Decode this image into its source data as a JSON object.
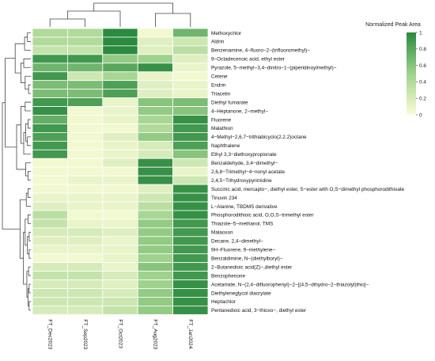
{
  "chart_data": {
    "type": "heatmap",
    "title": "",
    "legend_title": "Normalized Peak Area",
    "colorbar_ticks": [
      "0",
      "0.2",
      "0.4",
      "0.6",
      "0.8",
      "1"
    ],
    "colorbar_range": [
      0,
      1
    ],
    "colors": {
      "low": "#fbfcd8",
      "mid": "#9fd28c",
      "high": "#2a8a3e",
      "grid": "#ffffff",
      "line": "#444444"
    },
    "legend_position": "top-right",
    "columns": [
      "FT_Dec2023",
      "FT_Sep2023",
      "FT_Oct2023",
      "FT_Aug2023",
      "FT_Jan2024"
    ],
    "rows": [
      "Methoxychlor",
      "Aldrin",
      "Benzenamine, 4−fluoro−2−(trifluoromethyl)−",
      "9−Octadecenoic acid, ethyl ester",
      "Pyrazole, 5−methyl−3,4−dinitro−1−(piperidinoylmethyl)−",
      "Cetene",
      "Endrin",
      "Triacetin",
      "Diethyl fumarate",
      "4−Heptanone, 2−methyl−",
      "Fluorene",
      "Malathion",
      "4−Methyl−2,6,7−trithiabicyclo(2.2.2)octane",
      "Naphthalene",
      "Ethyl 3,3−diethoxypropionate",
      "Benzaldehyde, 3,4−dimethyl−",
      "2,6,8−Trimethyl−4−nonyl acetate",
      "2,4,5−Trihydroxypyrimidine",
      "Succinic acid, mercapto−, diethyl ester, S−ester with O,S−dimethyl phosphorodithioate",
      "Tinuvin 234",
      "L−Alanine, TBDMS derivative",
      "Phosphorodithioic acid, O,O,S−trimethyl ester",
      "Thiazole−5−methanol, TMS",
      "Malaoxon",
      "Decane, 2,4−dimethyl−",
      "9H−Fluorene, 9−methylene−",
      "Benzaldimine, N−(diethylboryl)−",
      "2−Butanedioic acid(Z)−,diethyl ester",
      "Benzophenone",
      "Acetamide, N−(2,4−difluorophenyl)−2−[(4,5−dihydro−2−thiazolyl)thio]−",
      "Diethyleneglycol diacrylate",
      "Heptachlor",
      "Pentanedioic acid, 3−thioxo−, diethyl ester"
    ],
    "values": [
      [
        0.4,
        0.4,
        1.0,
        0.05,
        0.7
      ],
      [
        0.4,
        0.4,
        1.0,
        0.15,
        0.25
      ],
      [
        0.3,
        0.3,
        1.0,
        0.15,
        0.35
      ],
      [
        0.9,
        0.9,
        0.55,
        0.5,
        0.15
      ],
      [
        0.7,
        0.7,
        0.8,
        0.95,
        0.1
      ],
      [
        0.9,
        0.25,
        0.45,
        0.1,
        0.05
      ],
      [
        0.65,
        0.65,
        0.85,
        0.15,
        0.1
      ],
      [
        0.65,
        0.65,
        0.85,
        0.15,
        0.1
      ],
      [
        0.9,
        0.85,
        0.1,
        0.6,
        0.65
      ],
      [
        0.95,
        0.05,
        0.1,
        0.55,
        0.6
      ],
      [
        0.75,
        0.05,
        0.1,
        0.45,
        0.95
      ],
      [
        0.9,
        0.05,
        0.05,
        0.4,
        0.9
      ],
      [
        0.85,
        0.05,
        0.15,
        0.55,
        0.9
      ],
      [
        0.9,
        0.05,
        0.1,
        0.2,
        0.85
      ],
      [
        0.9,
        0.05,
        0.1,
        0.2,
        0.6
      ],
      [
        0.05,
        0.05,
        0.15,
        0.95,
        0.25
      ],
      [
        0.05,
        0.05,
        0.05,
        0.95,
        0.1
      ],
      [
        0.05,
        0.1,
        0.1,
        0.95,
        0.25
      ],
      [
        0.05,
        0.05,
        0.05,
        0.15,
        0.95
      ],
      [
        0.1,
        0.1,
        0.1,
        0.25,
        0.95
      ],
      [
        0.15,
        0.1,
        0.1,
        0.35,
        0.95
      ],
      [
        0.35,
        0.05,
        0.05,
        0.45,
        0.95
      ],
      [
        0.3,
        0.1,
        0.1,
        0.55,
        0.9
      ],
      [
        0.2,
        0.2,
        0.15,
        0.55,
        0.9
      ],
      [
        0.15,
        0.15,
        0.1,
        0.55,
        0.9
      ],
      [
        0.1,
        0.1,
        0.1,
        0.55,
        0.9
      ],
      [
        0.05,
        0.05,
        0.1,
        0.5,
        0.9
      ],
      [
        0.2,
        0.2,
        0.1,
        0.6,
        0.9
      ],
      [
        0.3,
        0.3,
        0.2,
        0.5,
        0.9
      ],
      [
        0.2,
        0.2,
        0.15,
        0.5,
        0.95
      ],
      [
        0.25,
        0.25,
        0.2,
        0.55,
        0.95
      ],
      [
        0.25,
        0.25,
        0.25,
        0.55,
        0.95
      ],
      [
        0.2,
        0.2,
        0.3,
        0.55,
        0.95
      ]
    ]
  }
}
